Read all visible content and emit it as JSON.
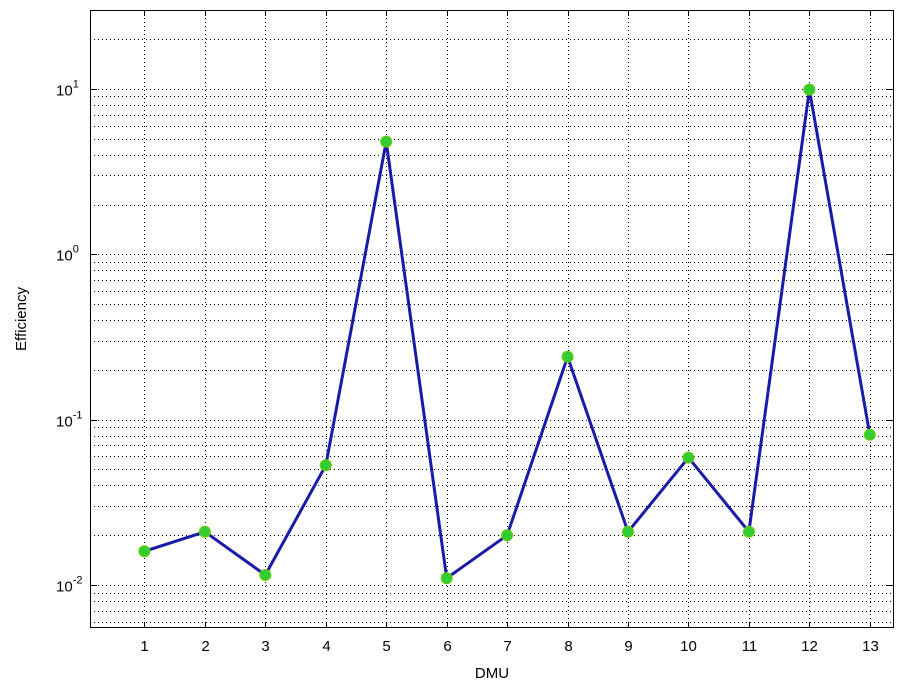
{
  "chart_data": {
    "type": "line",
    "x": [
      1,
      2,
      3,
      4,
      5,
      6,
      7,
      8,
      9,
      10,
      11,
      12,
      13
    ],
    "series": [
      {
        "values": [
          0.016,
          0.021,
          0.0115,
          0.053,
          4.8,
          0.011,
          0.02,
          0.24,
          0.021,
          0.059,
          0.021,
          9.9,
          0.081
        ]
      }
    ],
    "xlabel": "DMU",
    "ylabel": "Efficiency",
    "xlim": [
      0.1,
      13.4
    ],
    "ylim": [
      0.0055,
      30
    ],
    "yscale": "log",
    "xticks": [
      "1",
      "2",
      "3",
      "4",
      "5",
      "6",
      "7",
      "8",
      "9",
      "10",
      "11",
      "12",
      "13"
    ],
    "yticks": [
      {
        "base": "10",
        "exp": "-2",
        "value": 0.01
      },
      {
        "base": "10",
        "exp": "-1",
        "value": 0.1
      },
      {
        "base": "10",
        "exp": "0",
        "value": 1
      },
      {
        "base": "10",
        "exp": "1",
        "value": 10
      }
    ],
    "grid": true,
    "colors": {
      "line": "#1a1aa8",
      "marker_fill": "#33cc33",
      "marker_edge": "#66cc00"
    }
  }
}
